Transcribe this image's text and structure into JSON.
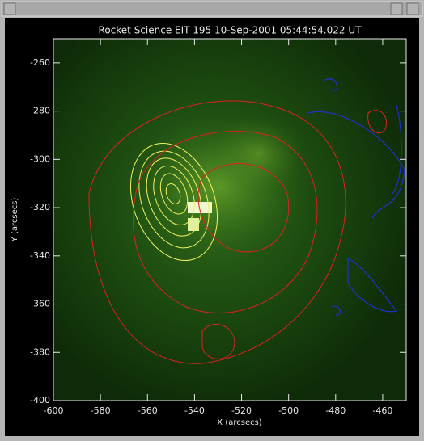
{
  "chart_data": {
    "type": "image",
    "title": "Rocket Science EIT 195 10-Sep-2001 05:44:54.022 UT",
    "x_label": "X (arcsecs)",
    "y_label": "Y (arcsecs)",
    "xlim": [
      -600,
      -450
    ],
    "ylim": [
      -400,
      -250
    ],
    "xticks": [
      -600,
      -580,
      -560,
      -540,
      -520,
      -500,
      -480,
      -460
    ],
    "yticks": [
      -400,
      -380,
      -360,
      -340,
      -320,
      -300,
      -280,
      -260
    ],
    "axis_color": "#e8e8e8"
  }
}
